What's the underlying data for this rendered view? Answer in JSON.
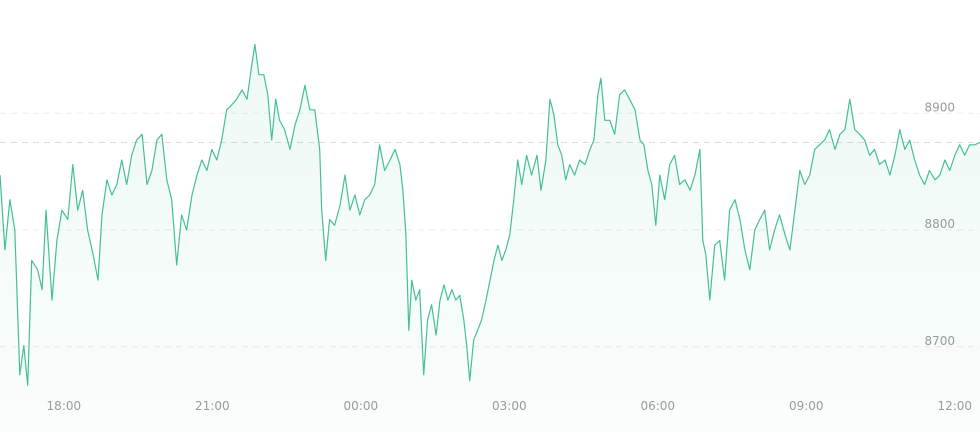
{
  "chart_data": {
    "type": "area",
    "color": "#45bf95",
    "grid": true,
    "xlim": [
      -1.29,
      18.51
    ],
    "ylim": [
      8627,
      8997
    ],
    "yticks": [
      8700,
      8800,
      8900
    ],
    "xticks": [
      {
        "value": 0,
        "label": "18:00"
      },
      {
        "value": 3,
        "label": "21:00"
      },
      {
        "value": 6,
        "label": "00:00"
      },
      {
        "value": 9,
        "label": "03:00"
      },
      {
        "value": 12,
        "label": "06:00"
      },
      {
        "value": 15,
        "label": "09:00"
      },
      {
        "value": 18,
        "label": "12:00"
      }
    ],
    "reference_line": 8875,
    "x": [
      -1.29,
      -1.19,
      -1.09,
      -0.99,
      -0.89,
      -0.81,
      -0.73,
      -0.65,
      -0.53,
      -0.44,
      -0.36,
      -0.24,
      -0.14,
      -0.04,
      0.08,
      0.18,
      0.28,
      0.38,
      0.48,
      0.59,
      0.69,
      0.77,
      0.87,
      0.97,
      1.07,
      1.17,
      1.27,
      1.37,
      1.47,
      1.58,
      1.68,
      1.78,
      1.88,
      1.98,
      2.08,
      2.18,
      2.28,
      2.38,
      2.48,
      2.59,
      2.69,
      2.79,
      2.89,
      2.99,
      3.09,
      3.19,
      3.29,
      3.39,
      3.49,
      3.6,
      3.7,
      3.8,
      3.86,
      3.94,
      4.04,
      4.12,
      4.2,
      4.28,
      4.36,
      4.46,
      4.57,
      4.67,
      4.77,
      4.87,
      4.97,
      5.07,
      5.17,
      5.21,
      5.29,
      5.37,
      5.47,
      5.58,
      5.68,
      5.78,
      5.88,
      5.98,
      6.08,
      6.18,
      6.28,
      6.38,
      6.48,
      6.59,
      6.69,
      6.79,
      6.85,
      6.91,
      6.97,
      7.03,
      7.11,
      7.19,
      7.27,
      7.35,
      7.43,
      7.52,
      7.6,
      7.68,
      7.76,
      7.84,
      7.92,
      8.0,
      8.08,
      8.14,
      8.2,
      8.28,
      8.36,
      8.44,
      8.53,
      8.61,
      8.69,
      8.77,
      8.85,
      8.93,
      9.01,
      9.09,
      9.17,
      9.25,
      9.35,
      9.45,
      9.56,
      9.64,
      9.74,
      9.82,
      9.9,
      9.98,
      10.06,
      10.14,
      10.22,
      10.32,
      10.42,
      10.53,
      10.63,
      10.71,
      10.79,
      10.85,
      10.93,
      11.03,
      11.13,
      11.23,
      11.33,
      11.43,
      11.54,
      11.64,
      11.72,
      11.8,
      11.88,
      11.96,
      12.04,
      12.14,
      12.24,
      12.34,
      12.44,
      12.55,
      12.65,
      12.75,
      12.85,
      12.91,
      12.97,
      13.05,
      13.15,
      13.25,
      13.35,
      13.45,
      13.56,
      13.66,
      13.76,
      13.86,
      13.96,
      14.06,
      14.16,
      14.26,
      14.36,
      14.46,
      14.57,
      14.67,
      14.77,
      14.87,
      14.97,
      15.07,
      15.17,
      15.27,
      15.37,
      15.47,
      15.58,
      15.68,
      15.78,
      15.88,
      15.98,
      16.08,
      16.18,
      16.28,
      16.38,
      16.48,
      16.59,
      16.69,
      16.79,
      16.89,
      16.99,
      17.09,
      17.19,
      17.29,
      17.39,
      17.49,
      17.6,
      17.7,
      17.8,
      17.9,
      18.0,
      18.1,
      18.2,
      18.3,
      18.4,
      18.51
    ],
    "values": [
      8847,
      8783,
      8826,
      8800,
      8676,
      8701,
      8667,
      8774,
      8766,
      8749,
      8817,
      8740,
      8791,
      8817,
      8809,
      8856,
      8817,
      8834,
      8800,
      8779,
      8757,
      8813,
      8843,
      8830,
      8839,
      8860,
      8839,
      8864,
      8877,
      8882,
      8839,
      8851,
      8877,
      8882,
      8843,
      8826,
      8770,
      8813,
      8800,
      8830,
      8847,
      8860,
      8851,
      8869,
      8860,
      8877,
      8903,
      8907,
      8912,
      8920,
      8912,
      8942,
      8959,
      8933,
      8933,
      8916,
      8877,
      8912,
      8894,
      8886,
      8869,
      8890,
      8903,
      8924,
      8903,
      8903,
      8869,
      8817,
      8774,
      8809,
      8804,
      8821,
      8847,
      8817,
      8830,
      8813,
      8826,
      8830,
      8839,
      8873,
      8851,
      8860,
      8869,
      8856,
      8834,
      8796,
      8714,
      8757,
      8740,
      8749,
      8676,
      8723,
      8736,
      8710,
      8740,
      8753,
      8740,
      8749,
      8740,
      8744,
      8723,
      8701,
      8671,
      8706,
      8714,
      8723,
      8740,
      8757,
      8774,
      8787,
      8774,
      8783,
      8796,
      8826,
      8860,
      8839,
      8864,
      8847,
      8864,
      8834,
      8860,
      8912,
      8899,
      8873,
      8864,
      8843,
      8856,
      8847,
      8860,
      8856,
      8869,
      8877,
      8916,
      8930,
      8894,
      8894,
      8882,
      8916,
      8920,
      8912,
      8903,
      8877,
      8873,
      8851,
      8839,
      8804,
      8847,
      8826,
      8856,
      8864,
      8839,
      8843,
      8834,
      8847,
      8869,
      8791,
      8779,
      8740,
      8787,
      8791,
      8757,
      8817,
      8826,
      8809,
      8783,
      8766,
      8800,
      8809,
      8817,
      8783,
      8800,
      8813,
      8796,
      8783,
      8817,
      8851,
      8839,
      8847,
      8869,
      8873,
      8877,
      8886,
      8869,
      8882,
      8886,
      8912,
      8886,
      8882,
      8877,
      8864,
      8869,
      8856,
      8860,
      8847,
      8864,
      8886,
      8869,
      8877,
      8860,
      8847,
      8839,
      8851,
      8843,
      8847,
      8860,
      8851,
      8864,
      8873,
      8864,
      8873,
      8873,
      8875
    ]
  }
}
